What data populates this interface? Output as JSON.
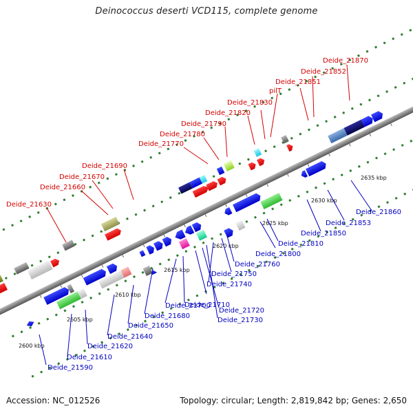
{
  "title": "Deinococcus deserti VCD115, complete genome",
  "footer": {
    "accession": "Accession: NC_012526",
    "summary": "Topology: circular; Length: 2,819,842 bp; Genes: 2,650"
  },
  "colors": {
    "top_label": "#d40000",
    "bottom_label": "#0000c0",
    "backbone": "#8c8c8c",
    "dots": "#2f7d2f"
  },
  "scale_ticks": [
    "2600 kbp",
    "2605 kbp",
    "2610 kbp",
    "2615 kbp",
    "2620 kbp",
    "2625 kbp",
    "2630 kbp",
    "2635 kbp"
  ],
  "labels_top": [
    "Deide_21630",
    "Deide_21660",
    "Deide_21670",
    "Deide_21690",
    "Deide_21770",
    "Deide_21780",
    "Deide_21790",
    "Deide_21820",
    "Deide_21830",
    "pilT",
    "Deide_21851",
    "Deide_21852",
    "Deide_21870"
  ],
  "labels_bottom": [
    "Deide_21590",
    "Deide_21610",
    "Deide_21620",
    "Deide_21640",
    "Deide_21650",
    "Deide_21680",
    "Deide_21700",
    "Deide_21710",
    "Deide_21720",
    "Deide_21730",
    "Deide_21740",
    "Deide_21750",
    "Deide_21760",
    "Deide_21800",
    "Deide_21810",
    "Deide_21850",
    "Deide_21853",
    "Deide_21860"
  ]
}
